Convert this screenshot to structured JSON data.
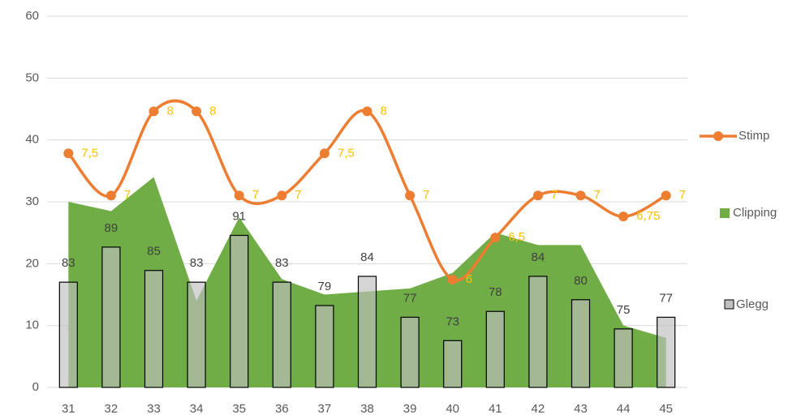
{
  "chart_data": {
    "type": "combo",
    "categories": [
      "31",
      "32",
      "33",
      "34",
      "35",
      "36",
      "37",
      "38",
      "39",
      "40",
      "41",
      "42",
      "43",
      "44",
      "45"
    ],
    "ylim": [
      0,
      60
    ],
    "yticks": [
      0,
      10,
      20,
      30,
      40,
      50,
      60
    ],
    "grid": true,
    "y2lim": [
      65,
      128.5
    ],
    "y3lim": [
      4.72,
      9.13
    ],
    "legend": "right",
    "series": [
      {
        "name": "Stimp",
        "type": "line",
        "axis": "y3",
        "smooth": true,
        "color": "#ed7d31",
        "label_color": "#ffc000",
        "values": [
          7.5,
          7,
          8,
          8,
          7,
          7,
          7.5,
          8,
          7,
          6,
          6.5,
          7,
          7,
          6.75,
          7
        ],
        "value_labels": [
          "7,5",
          "7",
          "8",
          "8",
          "7",
          "7",
          "7,5",
          "8",
          "7",
          "6",
          "6,5",
          "7",
          "7",
          "6,75",
          "7"
        ]
      },
      {
        "name": "Clipping",
        "type": "area",
        "axis": "y",
        "color": "#70ad47",
        "values": [
          30,
          28.5,
          34,
          14,
          27.5,
          17.5,
          15,
          15.5,
          16,
          18.5,
          25,
          23,
          23,
          10,
          8
        ]
      },
      {
        "name": "Glegg",
        "type": "bar",
        "axis": "y2",
        "color": "#bfbfbf",
        "label_color": "#404040",
        "values": [
          83,
          89,
          85,
          83,
          91,
          83,
          79,
          84,
          77,
          73,
          78,
          84,
          80,
          75,
          77
        ]
      }
    ]
  }
}
